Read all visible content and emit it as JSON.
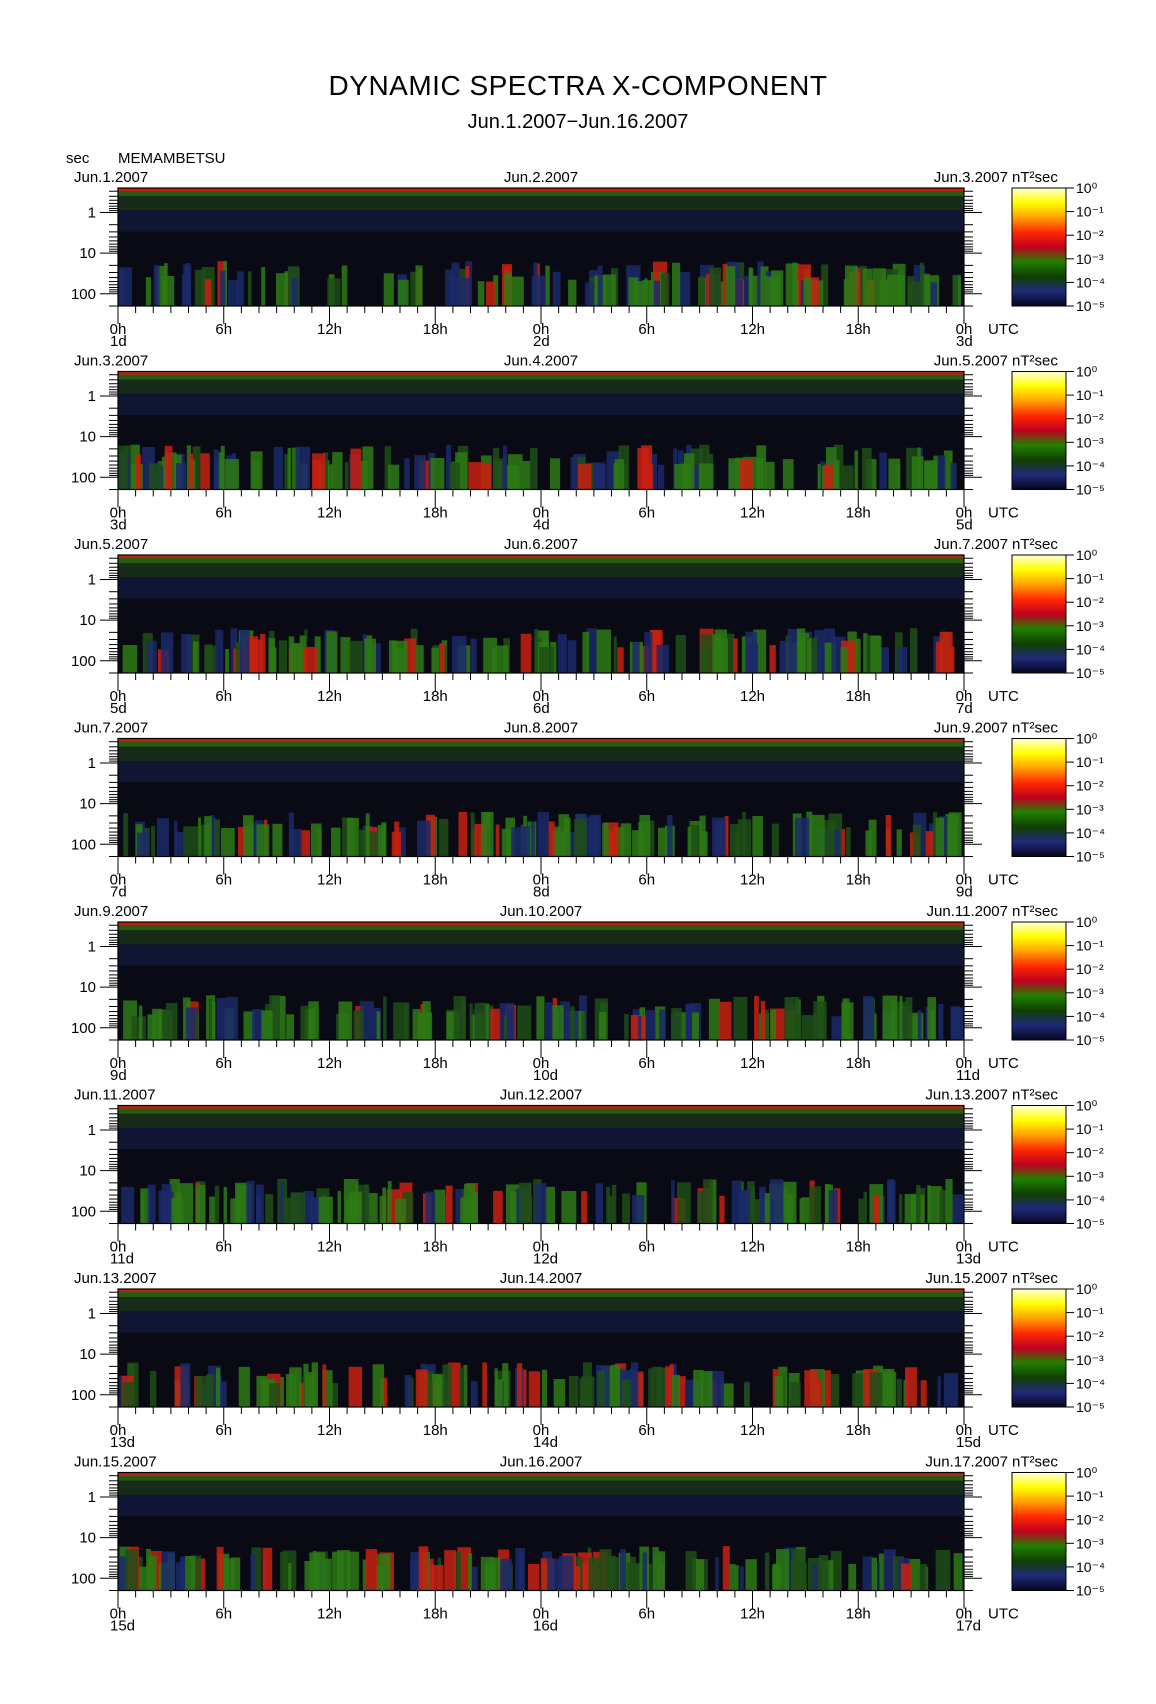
{
  "title": "DYNAMIC SPECTRA X-COMPONENT",
  "subtitle": "Jun.1.2007−Jun.16.2007",
  "unit_sec": "sec",
  "station": "MEMAMBETSU",
  "colorbar_unit": "nT²sec",
  "colors": {
    "background": "#ffffff",
    "spectrogram_floor": "#0a0a14",
    "colormap": [
      "#ffffd8",
      "#ffff00",
      "#ffa000",
      "#ff2a00",
      "#c00020",
      "#208000",
      "#104000",
      "#202a7a",
      "#05051e"
    ]
  },
  "chart_data": {
    "type": "heatmap",
    "y_label": "sec",
    "y_ticks": [
      "1",
      "10",
      "100"
    ],
    "x_ticks": [
      "0h",
      "6h",
      "12h",
      "18h",
      "0h",
      "6h",
      "12h",
      "18h",
      "0h"
    ],
    "x_suffix": "UTC",
    "colorbar_ticks": [
      "10⁰",
      "10⁻¹",
      "10⁻²",
      "10⁻³",
      "10⁻⁴",
      "10⁻⁵"
    ],
    "panels": [
      {
        "start_label": "Jun.1.2007",
        "mid_label": "Jun.2.2007",
        "end_label": "Jun.3.2007",
        "day_start": "1d",
        "day_mid": "2d",
        "day_end": "3d"
      },
      {
        "start_label": "Jun.3.2007",
        "mid_label": "Jun.4.2007",
        "end_label": "Jun.5.2007",
        "day_start": "3d",
        "day_mid": "4d",
        "day_end": "5d"
      },
      {
        "start_label": "Jun.5.2007",
        "mid_label": "Jun.6.2007",
        "end_label": "Jun.7.2007",
        "day_start": "5d",
        "day_mid": "6d",
        "day_end": "7d"
      },
      {
        "start_label": "Jun.7.2007",
        "mid_label": "Jun.8.2007",
        "end_label": "Jun.9.2007",
        "day_start": "7d",
        "day_mid": "8d",
        "day_end": "9d"
      },
      {
        "start_label": "Jun.9.2007",
        "mid_label": "Jun.10.2007",
        "end_label": "Jun.11.2007",
        "day_start": "9d",
        "day_mid": "10d",
        "day_end": "11d"
      },
      {
        "start_label": "Jun.11.2007",
        "mid_label": "Jun.12.2007",
        "end_label": "Jun.13.2007",
        "day_start": "11d",
        "day_mid": "12d",
        "day_end": "13d"
      },
      {
        "start_label": "Jun.13.2007",
        "mid_label": "Jun.14.2007",
        "end_label": "Jun.15.2007",
        "day_start": "13d",
        "day_mid": "14d",
        "day_end": "15d"
      },
      {
        "start_label": "Jun.15.2007",
        "mid_label": "Jun.16.2007",
        "end_label": "Jun.17.2007",
        "day_start": "15d",
        "day_mid": "16d",
        "day_end": "17d"
      }
    ]
  }
}
